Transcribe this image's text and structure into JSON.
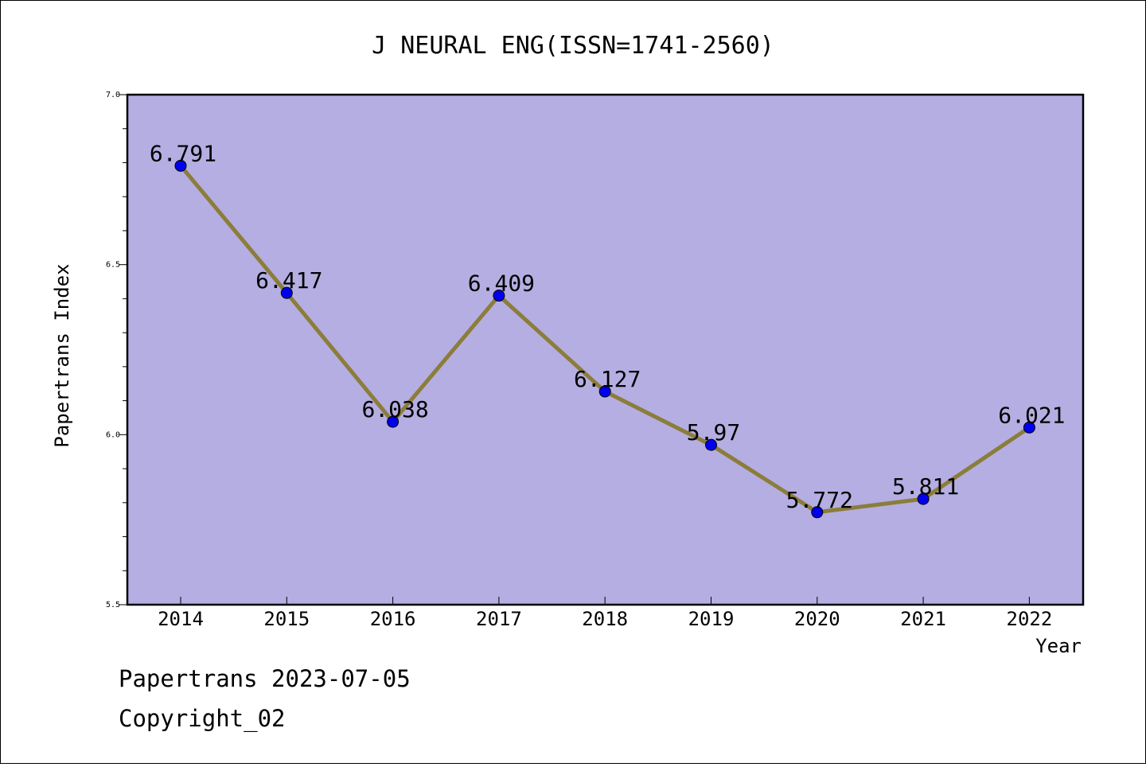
{
  "chart_data": {
    "type": "line",
    "title": "J NEURAL ENG(ISSN=1741-2560)",
    "xlabel": "Year",
    "ylabel": "Papertrans Index",
    "categories": [
      "2014",
      "2015",
      "2016",
      "2017",
      "2018",
      "2019",
      "2020",
      "2021",
      "2022"
    ],
    "series": [
      {
        "values": [
          6.791,
          6.417,
          6.038,
          6.409,
          6.127,
          5.97,
          5.772,
          5.811,
          6.021
        ],
        "labels": [
          "6.791",
          "6.417",
          "6.038",
          "6.409",
          "6.127",
          "5.97",
          "5.772",
          "5.811",
          "6.021"
        ]
      }
    ],
    "ylim": [
      5.5,
      7.0
    ],
    "yticks": [
      "5.5",
      "6.0",
      "6.5",
      "7.0"
    ],
    "grid": false,
    "colors": {
      "plot_background": "#b5aee2",
      "line": "#8b7d3a",
      "marker": "#0000ee"
    }
  },
  "footer": {
    "line1": "Papertrans 2023-07-05",
    "line2": "Copyright_02"
  }
}
